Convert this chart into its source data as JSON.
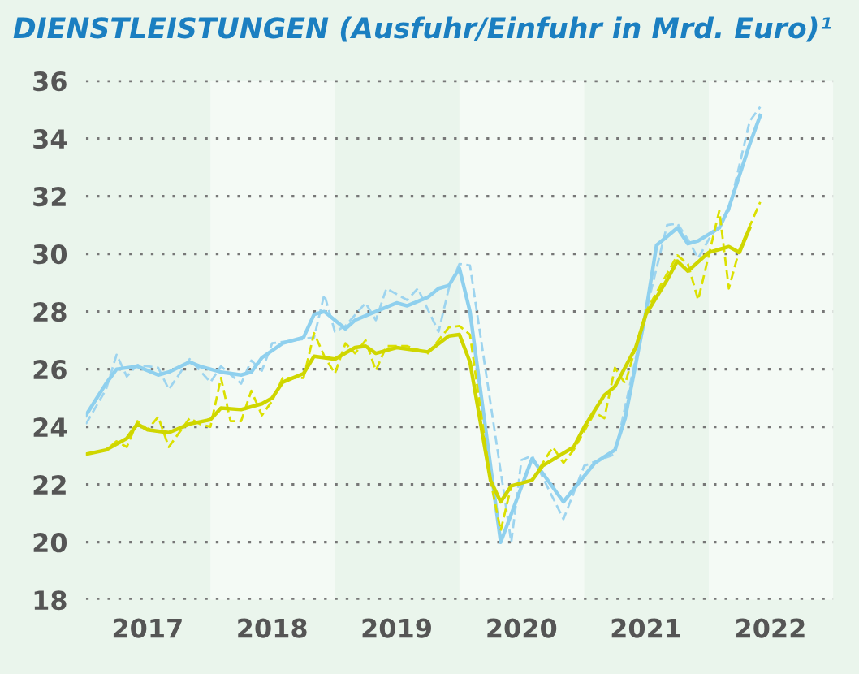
{
  "chart_data": {
    "type": "line",
    "title": "DIENSTLEISTUNGEN (Ausfuhr/Einfuhr in Mrd. Euro)¹",
    "xlim": [
      "2017-01-01",
      "2023-01-01"
    ],
    "ylim": [
      18,
      36
    ],
    "yticks": [
      18,
      20,
      22,
      24,
      26,
      28,
      30,
      32,
      34,
      36
    ],
    "xticks": [
      {
        "value": "2017-07-01",
        "label": "2017"
      },
      {
        "value": "2018-07-01",
        "label": "2018"
      },
      {
        "value": "2019-07-01",
        "label": "2019"
      },
      {
        "value": "2020-07-01",
        "label": "2020"
      },
      {
        "value": "2021-07-01",
        "label": "2021"
      },
      {
        "value": "2022-07-01",
        "label": "2022"
      }
    ],
    "grid": "y",
    "legend": false,
    "bands": [
      {
        "axis": "x",
        "from": "2018-01-01",
        "to": "2019-01-01",
        "color": "#f4faf5"
      },
      {
        "axis": "x",
        "from": "2020-01-01",
        "to": "2021-01-01",
        "color": "#f4faf5"
      },
      {
        "axis": "x",
        "from": "2022-01-01",
        "to": "2023-01-01",
        "color": "#f4faf5"
      }
    ],
    "series": [
      {
        "color": "#9dd4ef",
        "line_style": "dashed",
        "x": [
          "2017-01",
          "2017-03",
          "2017-04",
          "2017-05",
          "2017-06",
          "2017-08",
          "2017-09",
          "2017-11",
          "2018-01",
          "2018-02",
          "2018-04",
          "2018-05",
          "2018-06",
          "2018-07",
          "2018-09",
          "2018-11",
          "2018-12",
          "2019-01",
          "2019-02",
          "2019-04",
          "2019-05",
          "2019-06",
          "2019-08",
          "2019-09",
          "2019-11",
          "2019-12",
          "2020-01",
          "2020-02",
          "2020-06",
          "2020-07",
          "2020-08",
          "2020-11",
          "2021-01",
          "2021-04",
          "2021-05",
          "2021-07",
          "2021-09",
          "2021-10",
          "2021-11",
          "2021-12",
          "2022-01",
          "2022-03",
          "2022-05",
          "2022-06"
        ],
        "values": [
          24.1,
          25.3,
          26.5,
          25.75,
          26.15,
          26.05,
          25.3,
          26.35,
          25.55,
          26.1,
          25.5,
          26.3,
          25.95,
          26.9,
          27.0,
          27.1,
          28.6,
          27.3,
          27.5,
          28.3,
          27.7,
          28.8,
          28.4,
          28.8,
          27.3,
          28.8,
          29.65,
          29.6,
          20.0,
          22.85,
          23.0,
          20.8,
          22.65,
          23.05,
          24.7,
          28.0,
          31.0,
          31.05,
          30.5,
          29.85,
          30.5,
          31.5,
          34.6,
          35.1
        ]
      },
      {
        "color": "#8fd0ee",
        "line_style": "solid",
        "x": [
          "2017-01",
          "2017-03",
          "2017-04",
          "2017-06",
          "2017-08",
          "2017-09",
          "2017-11",
          "2017-12",
          "2018-02",
          "2018-04",
          "2018-05",
          "2018-06",
          "2018-08",
          "2018-10",
          "2018-11",
          "2018-12",
          "2019-02",
          "2019-03",
          "2019-05",
          "2019-07",
          "2019-08",
          "2019-10",
          "2019-11",
          "2019-12",
          "2020-01",
          "2020-02",
          "2020-05",
          "2020-08",
          "2020-11",
          "2021-02",
          "2021-04",
          "2021-05",
          "2021-07",
          "2021-08",
          "2021-10",
          "2021-11",
          "2021-12",
          "2022-02",
          "2022-03",
          "2022-05",
          "2022-06"
        ],
        "values": [
          24.4,
          25.5,
          26.0,
          26.1,
          25.8,
          25.9,
          26.25,
          26.1,
          25.9,
          25.8,
          25.9,
          26.4,
          26.9,
          27.1,
          27.9,
          28.0,
          27.4,
          27.7,
          28.0,
          28.3,
          28.2,
          28.5,
          28.8,
          28.9,
          29.5,
          28.0,
          20.0,
          22.9,
          21.4,
          22.75,
          23.2,
          24.3,
          28.0,
          30.3,
          30.9,
          30.35,
          30.45,
          30.9,
          31.6,
          33.8,
          34.8
        ]
      },
      {
        "color": "#dbe000",
        "line_style": "dashed",
        "x": [
          "2017-01",
          "2017-03",
          "2017-04",
          "2017-05",
          "2017-06",
          "2017-07",
          "2017-08",
          "2017-09",
          "2017-11",
          "2017-12",
          "2018-01",
          "2018-02",
          "2018-03",
          "2018-04",
          "2018-05",
          "2018-06",
          "2018-07",
          "2018-08",
          "2018-10",
          "2018-11",
          "2018-12",
          "2019-01",
          "2019-02",
          "2019-03",
          "2019-04",
          "2019-05",
          "2019-06",
          "2019-08",
          "2019-10",
          "2019-12",
          "2020-01",
          "2020-02",
          "2020-04",
          "2020-05",
          "2020-06",
          "2020-08",
          "2020-10",
          "2020-11",
          "2020-12",
          "2021-02",
          "2021-03",
          "2021-04",
          "2021-05",
          "2021-07",
          "2021-10",
          "2021-11",
          "2021-12",
          "2022-02",
          "2022-03",
          "2022-04",
          "2022-06"
        ],
        "values": [
          23.05,
          23.2,
          23.5,
          23.3,
          24.2,
          23.9,
          24.35,
          23.3,
          24.3,
          24.1,
          24.0,
          25.7,
          24.2,
          24.2,
          25.25,
          24.4,
          24.9,
          25.7,
          25.7,
          27.25,
          26.45,
          25.85,
          26.9,
          26.55,
          27.0,
          25.95,
          26.8,
          26.8,
          26.55,
          27.45,
          27.5,
          27.2,
          22.15,
          20.4,
          21.95,
          22.15,
          23.3,
          22.75,
          23.2,
          24.5,
          24.3,
          26.05,
          25.5,
          28.0,
          29.95,
          29.65,
          28.4,
          31.5,
          28.8,
          30.15,
          31.8
        ]
      },
      {
        "color": "#cfd600",
        "line_style": "solid",
        "x": [
          "2017-01",
          "2017-03",
          "2017-05",
          "2017-06",
          "2017-07",
          "2017-09",
          "2017-11",
          "2018-01",
          "2018-02",
          "2018-04",
          "2018-06",
          "2018-07",
          "2018-08",
          "2018-10",
          "2018-11",
          "2019-01",
          "2019-03",
          "2019-04",
          "2019-05",
          "2019-07",
          "2019-10",
          "2019-12",
          "2020-01",
          "2020-02",
          "2020-04",
          "2020-05",
          "2020-06",
          "2020-08",
          "2020-09",
          "2020-12",
          "2021-01",
          "2021-03",
          "2021-04",
          "2021-06",
          "2021-07",
          "2021-09",
          "2021-10",
          "2021-11",
          "2022-01",
          "2022-03",
          "2022-04",
          "2022-05"
        ],
        "values": [
          23.05,
          23.2,
          23.6,
          24.1,
          23.9,
          23.8,
          24.1,
          24.25,
          24.65,
          24.6,
          24.8,
          25.0,
          25.55,
          25.85,
          26.45,
          26.35,
          26.75,
          26.8,
          26.55,
          26.75,
          26.6,
          27.15,
          27.2,
          26.25,
          22.15,
          21.4,
          21.95,
          22.15,
          22.65,
          23.3,
          24.0,
          25.1,
          25.4,
          26.75,
          27.9,
          29.1,
          29.75,
          29.4,
          30.05,
          30.25,
          30.05,
          30.9
        ]
      }
    ]
  }
}
